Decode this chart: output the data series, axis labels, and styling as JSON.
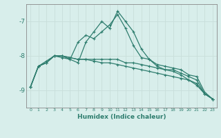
{
  "xlabel": "Humidex (Indice chaleur)",
  "x": [
    0,
    1,
    2,
    3,
    4,
    5,
    6,
    7,
    8,
    9,
    10,
    11,
    12,
    13,
    14,
    15,
    16,
    17,
    18,
    19,
    20,
    21,
    22,
    23
  ],
  "line1": [
    -8.9,
    -8.3,
    -8.2,
    -8.0,
    -8.0,
    -8.1,
    -8.2,
    -7.6,
    -7.3,
    -7.0,
    -7.2,
    -6.7,
    -7.0,
    -7.3,
    -7.8,
    -8.1,
    -8.25,
    -8.3,
    -8.35,
    -8.4,
    -8.55,
    -8.6,
    -9.05,
    -9.25
  ],
  "line2": [
    -8.9,
    -8.3,
    -8.15,
    -8.0,
    -8.05,
    -8.1,
    -7.6,
    -7.4,
    -7.5,
    -7.3,
    -7.1,
    -6.8,
    -7.2,
    -7.7,
    -8.05,
    -8.1,
    -8.3,
    -8.4,
    -8.45,
    -8.55,
    -8.7,
    -8.85,
    -9.1,
    -9.25
  ],
  "line3": [
    -8.9,
    -8.3,
    -8.2,
    -8.0,
    -8.0,
    -8.05,
    -8.1,
    -8.1,
    -8.1,
    -8.1,
    -8.1,
    -8.1,
    -8.2,
    -8.2,
    -8.25,
    -8.3,
    -8.35,
    -8.4,
    -8.4,
    -8.5,
    -8.6,
    -8.7,
    -9.1,
    -9.25
  ],
  "line4": [
    -8.9,
    -8.3,
    -8.2,
    -8.0,
    -8.0,
    -8.05,
    -8.1,
    -8.1,
    -8.15,
    -8.2,
    -8.2,
    -8.25,
    -8.3,
    -8.35,
    -8.4,
    -8.45,
    -8.5,
    -8.55,
    -8.6,
    -8.65,
    -8.7,
    -8.8,
    -9.1,
    -9.25
  ],
  "line_color": "#2e7d6e",
  "bg_color": "#d8eeeb",
  "grid_color": "#c8deda",
  "axis_color": "#888888",
  "ylim": [
    -9.5,
    -6.5
  ],
  "yticks": [
    -9,
    -8,
    -7
  ],
  "xlim": [
    -0.5,
    23.5
  ]
}
